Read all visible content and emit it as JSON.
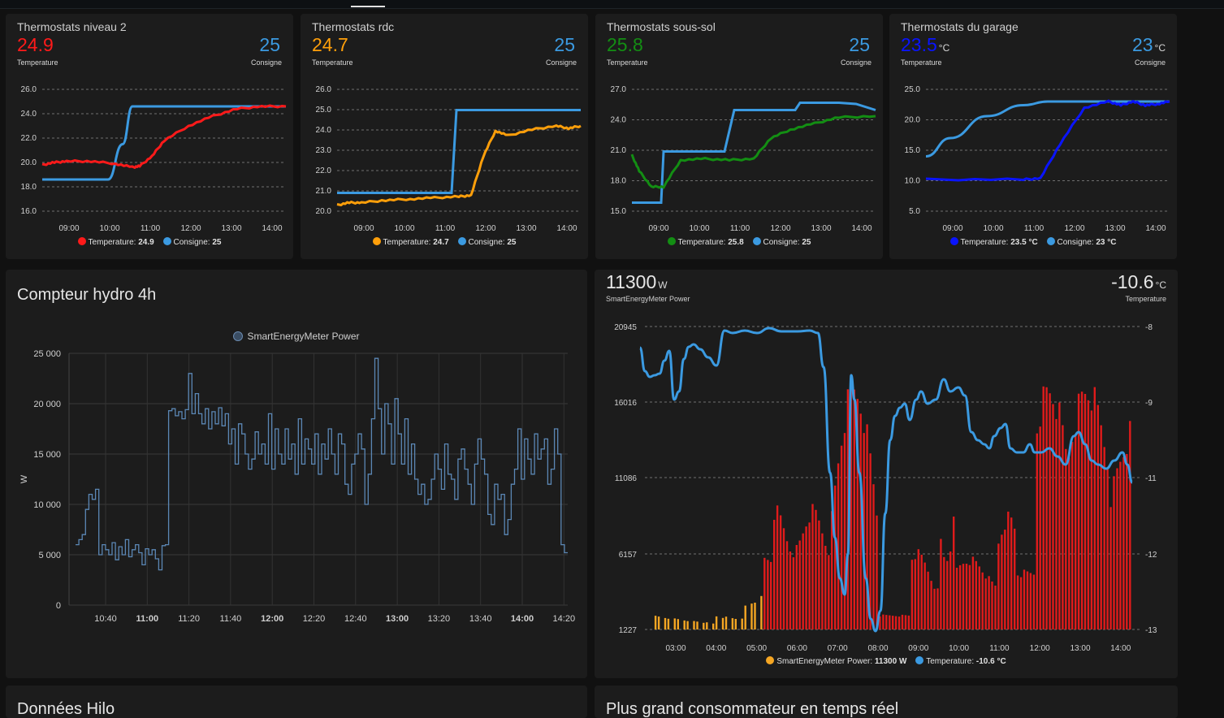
{
  "thermostats": [
    {
      "title": "Thermostats niveau 2",
      "temp_value": "24.9",
      "temp_unit": "",
      "temp_label": "Temperature",
      "temp_color": "#ff1a1a",
      "set_value": "25",
      "set_unit": "",
      "set_label": "Consigne",
      "set_color": "#3b9ae1",
      "legend_temp_name": "Temperature:",
      "legend_temp_value": "24.9",
      "legend_set_name": "Consigne:",
      "legend_set_value": "25",
      "y_ticks": [
        "26.0",
        "24.0",
        "22.0",
        "20.0",
        "18.0",
        "16.0"
      ],
      "x_ticks": [
        "09:00",
        "10:00",
        "11:00",
        "12:00",
        "13:00",
        "14:00"
      ]
    },
    {
      "title": "Thermostats rdc",
      "temp_value": "24.7",
      "temp_unit": "",
      "temp_label": "Temperature",
      "temp_color": "#ff9f0a",
      "set_value": "25",
      "set_unit": "",
      "set_label": "Consigne",
      "set_color": "#3b9ae1",
      "legend_temp_name": "Temperature:",
      "legend_temp_value": "24.7",
      "legend_set_name": "Consigne:",
      "legend_set_value": "25",
      "y_ticks": [
        "26.0",
        "25.0",
        "24.0",
        "23.0",
        "22.0",
        "21.0",
        "20.0"
      ],
      "x_ticks": [
        "09:00",
        "10:00",
        "11:00",
        "12:00",
        "13:00",
        "14:00"
      ]
    },
    {
      "title": "Thermostats sous-sol",
      "temp_value": "25.8",
      "temp_unit": "",
      "temp_label": "Temperature",
      "temp_color": "#138e13",
      "set_value": "25",
      "set_unit": "",
      "set_label": "Consigne",
      "set_color": "#3b9ae1",
      "legend_temp_name": "Temperature:",
      "legend_temp_value": "25.8",
      "legend_set_name": "Consigne:",
      "legend_set_value": "25",
      "y_ticks": [
        "27.0",
        "24.0",
        "21.0",
        "18.0",
        "15.0"
      ],
      "x_ticks": [
        "09:00",
        "10:00",
        "11:00",
        "12:00",
        "13:00",
        "14:00"
      ]
    },
    {
      "title": "Thermostats du garage",
      "temp_value": "23.5",
      "temp_unit": "°C",
      "temp_label": "Temperature",
      "temp_color": "#0a14ff",
      "set_value": "23",
      "set_unit": "°C",
      "set_label": "Consigne",
      "set_color": "#3b9ae1",
      "legend_temp_name": "Temperature:",
      "legend_temp_value": "23.5 °C",
      "legend_set_name": "Consigne:",
      "legend_set_value": "23 °C",
      "y_ticks": [
        "25.0",
        "20.0",
        "15.0",
        "10.0",
        "5.0"
      ],
      "x_ticks": [
        "09:00",
        "10:00",
        "11:00",
        "12:00",
        "13:00",
        "14:00"
      ]
    }
  ],
  "hydro": {
    "title": "Compteur hydro 4h",
    "legend": "SmartEnergyMeter Power",
    "y_label": "W",
    "y_ticks": [
      "25 000",
      "20 000",
      "15 000",
      "10 000",
      "5 000",
      "0"
    ],
    "x_ticks": [
      "10:40",
      "11:00",
      "11:20",
      "11:40",
      "12:00",
      "12:20",
      "12:40",
      "13:00",
      "13:20",
      "13:40",
      "14:00",
      "14:20"
    ],
    "bold_x_ticks": [
      "11:00",
      "12:00",
      "13:00",
      "14:00"
    ],
    "line_color": "#5b87b5"
  },
  "energy": {
    "power_value": "11300",
    "power_unit": "W",
    "power_label": "SmartEnergyMeter Power",
    "temp_value": "-10.6",
    "temp_unit": "°C",
    "temp_label": "Temperature",
    "y_left_ticks": [
      "20945",
      "16016",
      "11086",
      "6157",
      "1227"
    ],
    "y_right_ticks": [
      "-8",
      "-9",
      "-11",
      "-12",
      "-13"
    ],
    "x_ticks": [
      "03:00",
      "04:00",
      "05:00",
      "06:00",
      "07:00",
      "08:00",
      "09:00",
      "10:00",
      "11:00",
      "12:00",
      "13:00",
      "14:00"
    ],
    "legend_power_name": "SmartEnergyMeter Power:",
    "legend_power_value": "11300 W",
    "legend_temp_name": "Temperature:",
    "legend_temp_value": "-10.6 °C",
    "bar_color_high": "#e01b1b",
    "bar_color_low": "#f5a623",
    "line_color": "#3b9ae1"
  },
  "bottom": {
    "left_title": "Données Hilo",
    "right_title": "Plus grand consommateur en temps réel"
  }
}
